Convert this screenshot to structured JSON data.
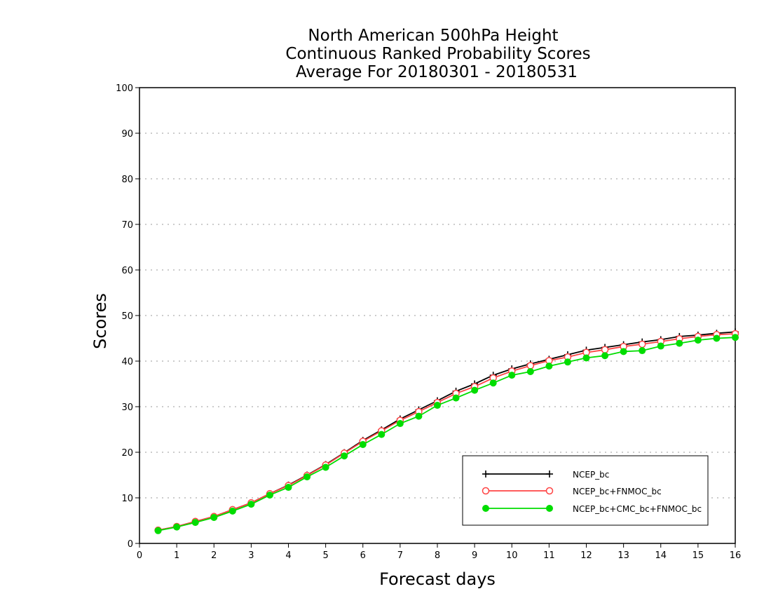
{
  "chart_data": {
    "type": "line",
    "title_lines": [
      "North American 500hPa Height",
      "Continuous Ranked Probability Scores",
      "Average For 20180301 - 20180531"
    ],
    "xlabel": "Forecast days",
    "ylabel": "Scores",
    "xlim": [
      0,
      16
    ],
    "ylim": [
      0,
      100
    ],
    "x_ticks": [
      "0",
      "1",
      "2",
      "3",
      "4",
      "5",
      "6",
      "7",
      "8",
      "9",
      "10",
      "11",
      "12",
      "13",
      "14",
      "15",
      "16"
    ],
    "y_ticks": [
      "0",
      "10",
      "20",
      "30",
      "40",
      "50",
      "60",
      "70",
      "80",
      "90",
      "100"
    ],
    "grid": "horizontal dotted",
    "legend_position": "bottom-right",
    "x": [
      0.5,
      1,
      1.5,
      2,
      2.5,
      3,
      3.5,
      4,
      4.5,
      5,
      5.5,
      6,
      6.5,
      7,
      7.5,
      8,
      8.5,
      9,
      9.5,
      10,
      10.5,
      11,
      11.5,
      12,
      12.5,
      13,
      13.5,
      14,
      14.5,
      15,
      15.5,
      16
    ],
    "series": [
      {
        "name": "NCEP_bc",
        "color": "#000000",
        "marker": "plus",
        "values": [
          2.9,
          3.7,
          4.8,
          5.9,
          7.4,
          8.9,
          10.9,
          12.8,
          15.0,
          17.3,
          19.9,
          22.6,
          24.9,
          27.3,
          29.3,
          31.3,
          33.4,
          35.0,
          36.9,
          38.3,
          39.4,
          40.4,
          41.4,
          42.4,
          43.0,
          43.6,
          44.2,
          44.7,
          45.4,
          45.7,
          46.1,
          46.4
        ]
      },
      {
        "name": "NCEP_bc+FNMOC_bc",
        "color": "#ff4444",
        "marker": "open-circle",
        "values": [
          2.9,
          3.7,
          4.8,
          5.9,
          7.4,
          8.9,
          10.9,
          12.7,
          14.9,
          17.2,
          19.8,
          22.4,
          24.7,
          27.0,
          28.9,
          30.9,
          32.9,
          34.4,
          36.3,
          37.8,
          39.0,
          40.1,
          40.9,
          41.9,
          42.5,
          43.2,
          43.7,
          44.3,
          44.9,
          45.4,
          45.8,
          46.0
        ]
      },
      {
        "name": "NCEP_bc+CMC_bc+FNMOC_bc",
        "color": "#00dd00",
        "marker": "filled-circle",
        "values": [
          2.8,
          3.6,
          4.6,
          5.7,
          7.1,
          8.6,
          10.6,
          12.3,
          14.6,
          16.7,
          19.2,
          21.7,
          23.9,
          26.3,
          27.9,
          30.3,
          31.9,
          33.6,
          35.2,
          36.9,
          37.7,
          38.9,
          39.8,
          40.7,
          41.2,
          42.1,
          42.3,
          43.3,
          43.9,
          44.6,
          45.0,
          45.2
        ]
      }
    ]
  }
}
